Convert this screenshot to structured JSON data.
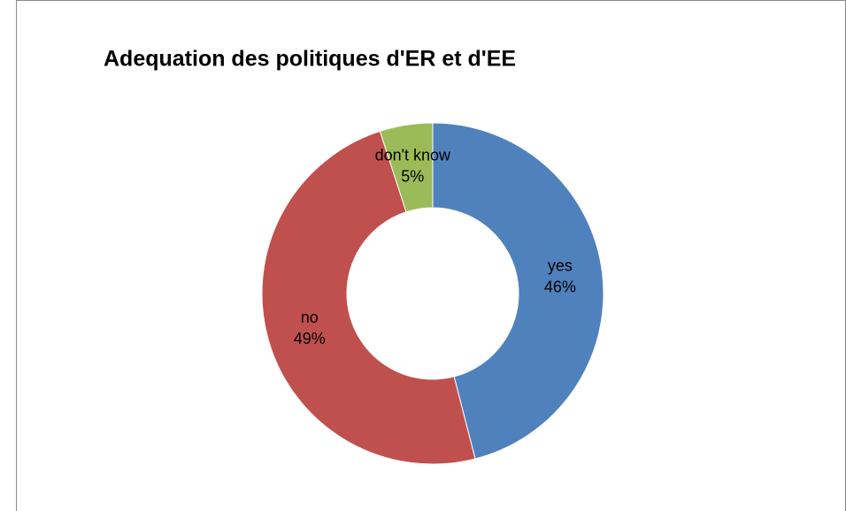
{
  "chart_data": {
    "type": "donut",
    "title": "Adequation des politiques d'ER et d'EE",
    "categories": [
      "yes",
      "no",
      "don't know"
    ],
    "values": [
      46,
      49,
      5
    ],
    "value_labels": [
      "46%",
      "49%",
      "5%"
    ],
    "colors": [
      "#4f81bd",
      "#c0504d",
      "#9bbb59"
    ]
  }
}
